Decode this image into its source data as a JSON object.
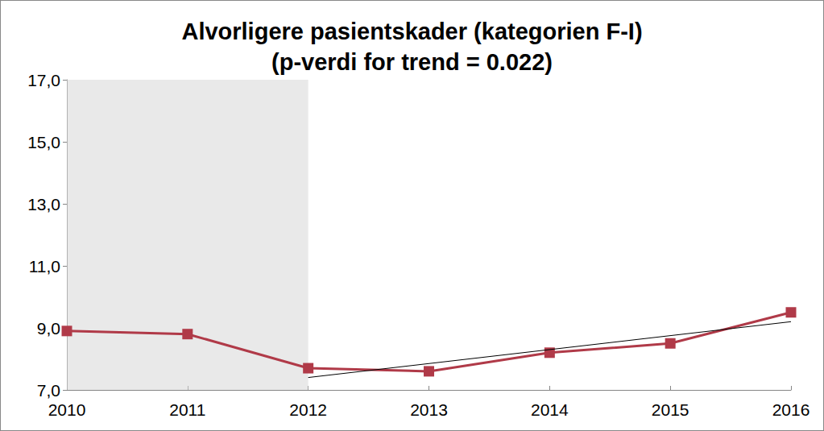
{
  "chart_data": {
    "type": "line",
    "title": "Alvorligere pasientskader (kategorien F-I)\n(p-verdi for trend = 0.022)",
    "categories": [
      "2010",
      "2011",
      "2012",
      "2013",
      "2014",
      "2015",
      "2016"
    ],
    "series": [
      {
        "color": "#b03a48",
        "marker": "square",
        "line_style": "solid",
        "values": [
          8.9,
          8.8,
          7.7,
          7.6,
          8.2,
          8.5,
          9.5
        ]
      },
      {
        "color": "#000000",
        "marker": "none",
        "line_style": "solid",
        "values": [
          null,
          null,
          7.4,
          null,
          null,
          null,
          9.2
        ]
      }
    ],
    "shaded_range": [
      "2010",
      "2012"
    ],
    "ylim": [
      7,
      17
    ],
    "yticks": [
      {
        "value": 7,
        "label": "7,0"
      },
      {
        "value": 9,
        "label": "9,0"
      },
      {
        "value": 11,
        "label": "11,0"
      },
      {
        "value": 13,
        "label": "13,0"
      },
      {
        "value": 15,
        "label": "15,0"
      },
      {
        "value": 17,
        "label": "17,0"
      }
    ],
    "grid": false
  }
}
